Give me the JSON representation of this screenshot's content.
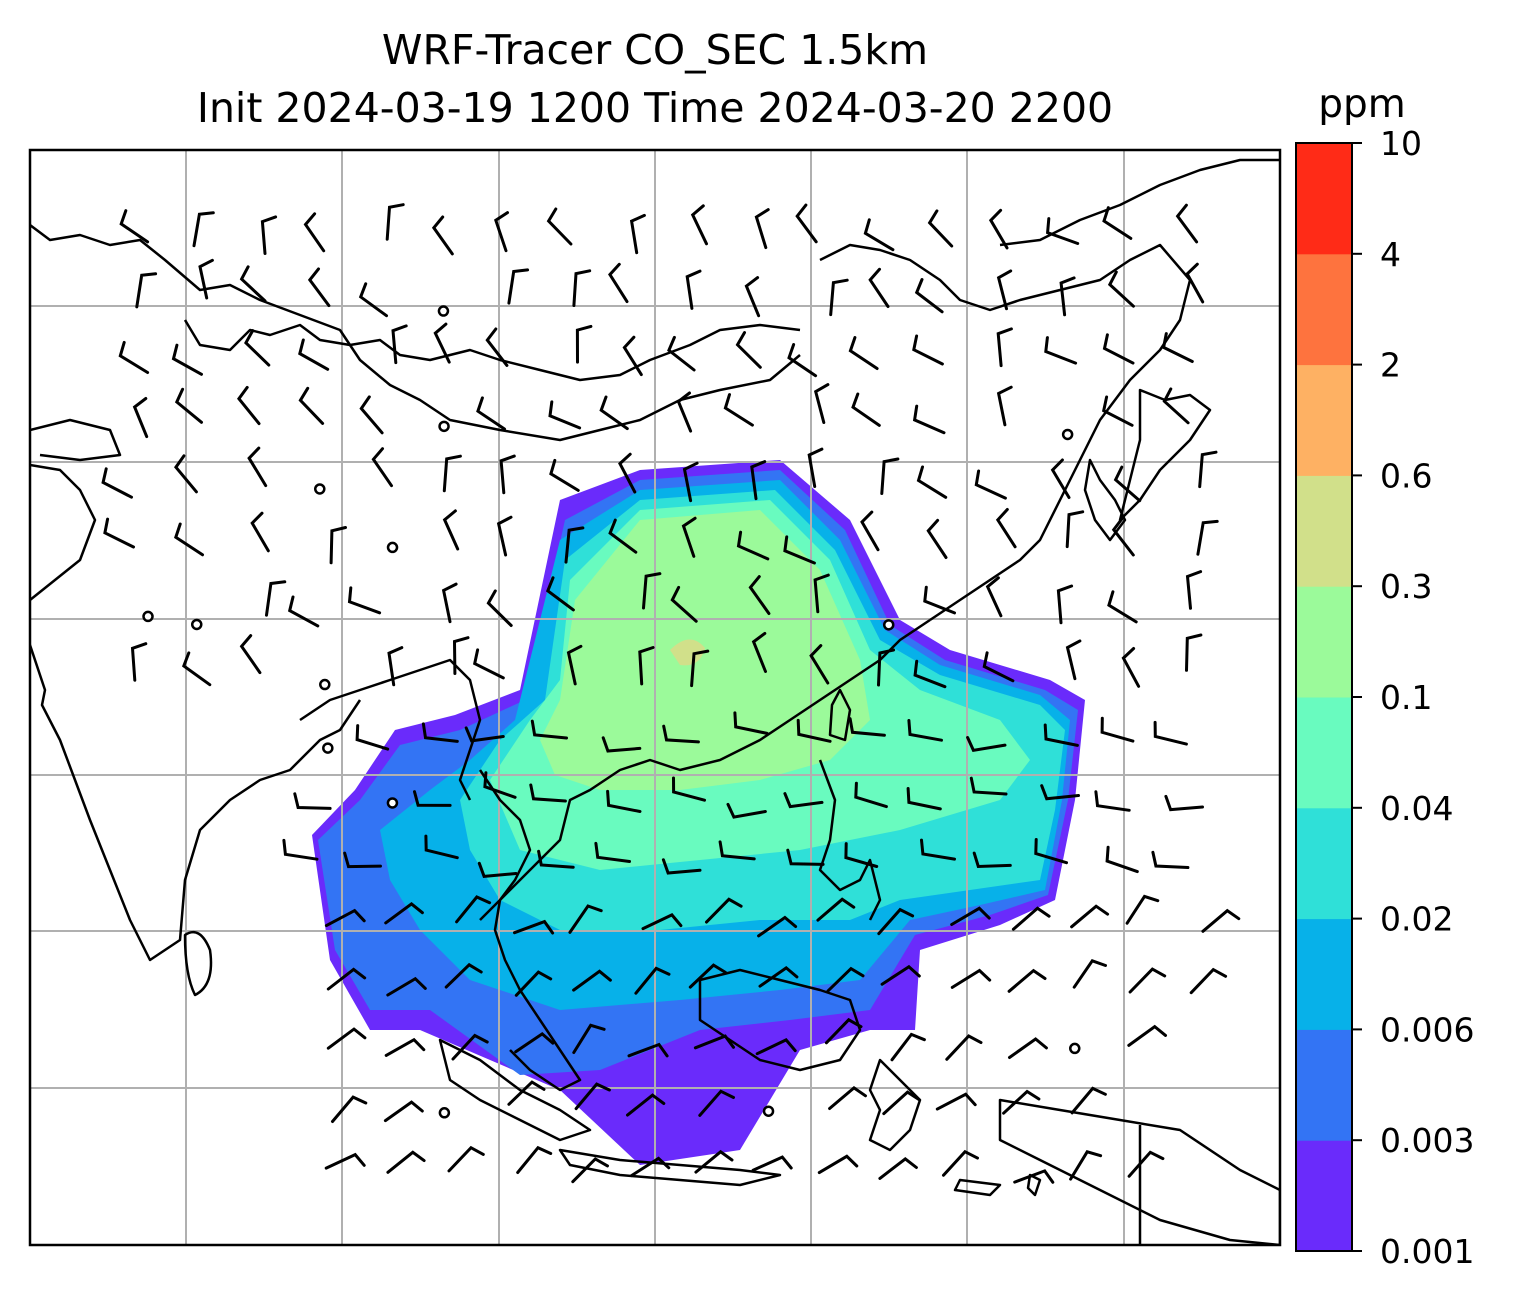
{
  "chart_data": {
    "type": "heatmap",
    "title": "WRF-Tracer CO_SEC 1.5km",
    "subtitle": "Init 2024-03-19 1200 Time 2024-03-20 2200",
    "colorbar": {
      "unit": "ppm",
      "levels": [
        "0.001",
        "0.003",
        "0.006",
        "0.02",
        "0.04",
        "0.1",
        "0.3",
        "0.6",
        "2",
        "4",
        "10"
      ],
      "colors": [
        "#6a2bfb",
        "#3374f4",
        "#07b1e9",
        "#2fe0d8",
        "#69fbbf",
        "#9bfa9a",
        "#d1e08a",
        "#feb163",
        "#fe733e",
        "#ff2b17"
      ]
    },
    "map": {
      "coastlines": true,
      "gridlines": true,
      "wind_barbs": true,
      "filled_contours": true
    }
  }
}
